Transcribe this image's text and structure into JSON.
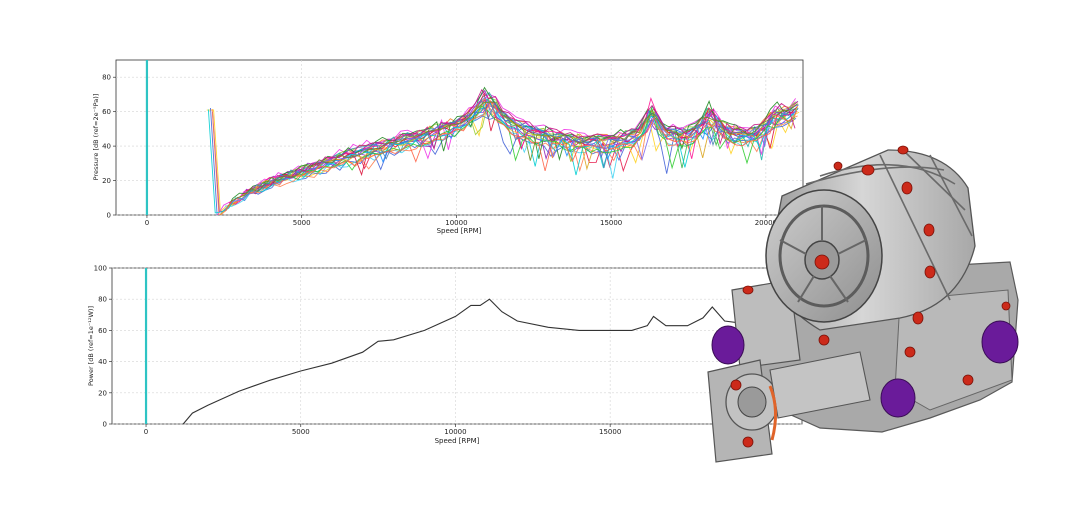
{
  "colors": {
    "cursor_line": "#2ec4c4",
    "power_line": "#333333",
    "grid": "#d4d4d4",
    "series_palette": [
      "#e6194b",
      "#3cb44b",
      "#ffd21f",
      "#4363d8",
      "#f58231",
      "#911eb4",
      "#42d4f4",
      "#f032e6",
      "#9acd32",
      "#ff7f50",
      "#20b2aa",
      "#8a2be2",
      "#dc143c",
      "#228b22",
      "#1e90ff",
      "#ff1493",
      "#daa520",
      "#00ced1",
      "#7b68ee",
      "#32cd32",
      "#ff6347",
      "#4682b4",
      "#c71585",
      "#6b8e23"
    ],
    "motor_body": "#c8c8c8",
    "motor_accent_red": "#cc2a1a",
    "motor_accent_purple": "#6a1b9a"
  },
  "illustration": {
    "icon": "electric-drive-unit-render"
  },
  "chart_data": [
    {
      "type": "line",
      "title": "",
      "xlabel": "Speed [RPM]",
      "ylabel": "Pressure [dB (ref=2e⁻⁵Pa)]",
      "xlim": [
        -1000,
        21200
      ],
      "ylim": [
        0,
        90
      ],
      "xticks": [
        0,
        5000,
        10000,
        15000,
        20000
      ],
      "yticks": [
        0,
        20,
        40,
        60,
        80
      ],
      "grid": true,
      "cursor_x": 0,
      "series_count": 24,
      "baseline_x": [
        2200,
        3000,
        4000,
        5000,
        6000,
        7000,
        8000,
        9000,
        10000,
        10500,
        11000,
        11500,
        12000,
        13000,
        14000,
        15000,
        16000,
        16300,
        16700,
        17500,
        18200,
        18800,
        19500,
        20300,
        20800,
        21000
      ],
      "baseline_y": [
        0,
        10,
        19,
        25,
        31,
        36,
        41,
        46,
        52,
        57,
        63,
        56,
        50,
        45,
        42,
        42,
        46,
        57,
        46,
        46,
        53,
        47,
        45,
        53,
        58,
        62
      ],
      "resonance_x": [
        11000,
        16300,
        18200,
        20300
      ],
      "resonance_height": [
        9,
        8,
        8,
        7
      ]
    },
    {
      "type": "line",
      "title": "",
      "xlabel": "Speed [RPM]",
      "ylabel": "Power [dB (ref=1e⁻¹²W)]",
      "xlim": [
        -1100,
        21200
      ],
      "ylim": [
        0,
        100
      ],
      "xticks": [
        0,
        5000,
        10000,
        15000
      ],
      "yticks": [
        0,
        20,
        40,
        60,
        80,
        100
      ],
      "grid": true,
      "cursor_x": 0,
      "series": [
        {
          "x": [
            1200,
            1500,
            2000,
            3000,
            4000,
            5000,
            6000,
            7000,
            7500,
            8000,
            9000,
            10000,
            10500,
            10800,
            11100,
            11500,
            12000,
            13000,
            14000,
            15000,
            15700,
            16200,
            16400,
            16800,
            17500,
            18000,
            18300,
            18700,
            19500,
            20000
          ],
          "y": [
            0,
            7,
            12,
            21,
            28,
            34,
            39,
            46,
            53,
            54,
            60,
            69,
            76,
            76,
            80,
            72,
            66,
            62,
            60,
            60,
            60,
            63,
            69,
            63,
            63,
            68,
            75,
            66,
            64,
            66
          ]
        }
      ]
    }
  ]
}
